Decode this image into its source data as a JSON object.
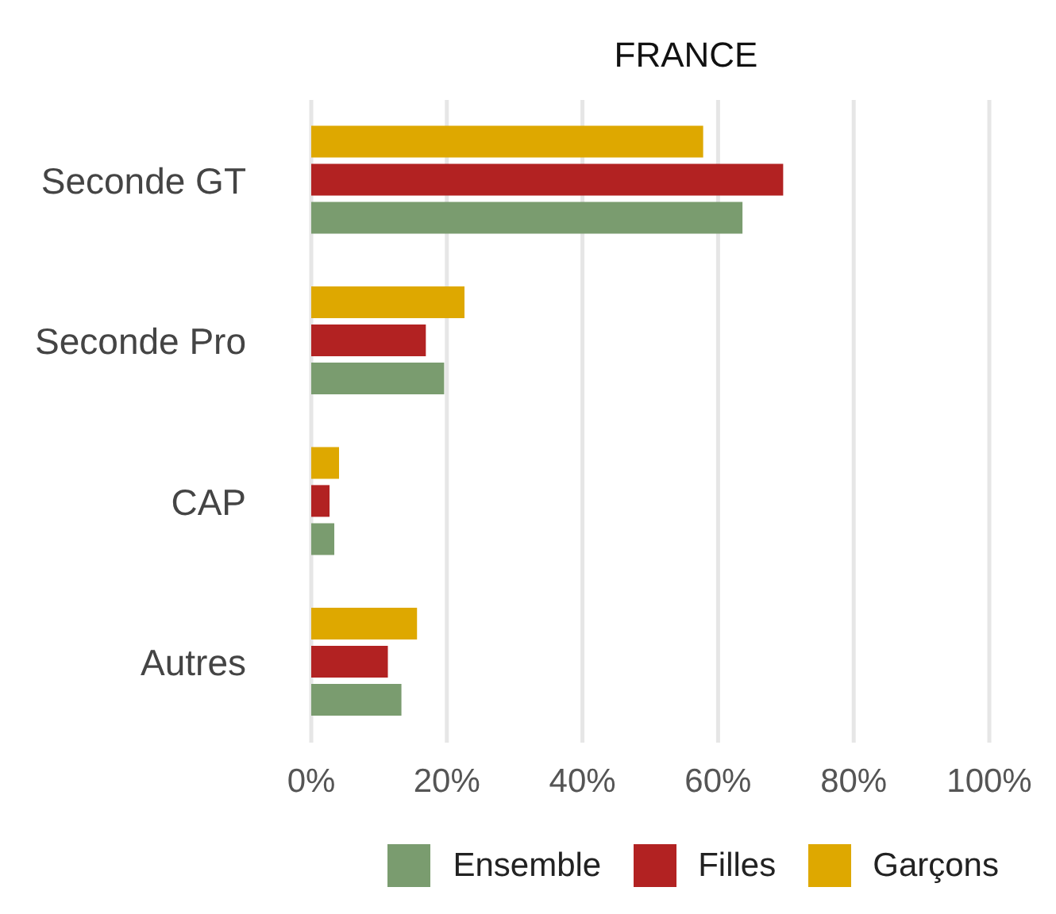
{
  "chart_data": {
    "type": "bar",
    "orientation": "horizontal",
    "title": "FRANCE",
    "categories": [
      "Seconde GT",
      "Seconde Pro",
      "CAP",
      "Autres"
    ],
    "series": [
      {
        "name": "Ensemble",
        "color": "#7a9c6f",
        "values": [
          63.6,
          19.6,
          3.4,
          13.3
        ]
      },
      {
        "name": "Filles",
        "color": "#b22222",
        "values": [
          69.6,
          16.9,
          2.7,
          11.3
        ]
      },
      {
        "name": "Garçons",
        "color": "#dea800",
        "values": [
          57.8,
          22.6,
          4.1,
          15.6
        ]
      }
    ],
    "xlim": [
      0,
      100
    ],
    "xticks": [
      {
        "value": 0,
        "label": "0%"
      },
      {
        "value": 20,
        "label": "20%"
      },
      {
        "value": 40,
        "label": "40%"
      },
      {
        "value": 60,
        "label": "60%"
      },
      {
        "value": 80,
        "label": "80%"
      },
      {
        "value": 100,
        "label": "100%"
      }
    ],
    "grid": "x",
    "legend": "bottom"
  }
}
